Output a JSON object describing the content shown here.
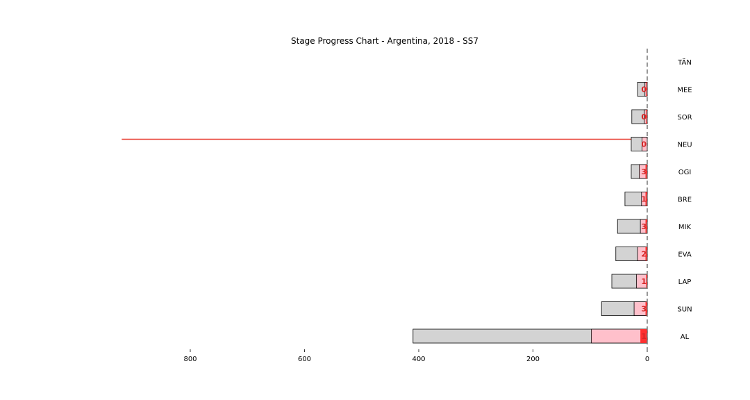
{
  "chart_data": {
    "type": "bar",
    "orientation": "horizontal",
    "title": "Stage Progress Chart - Argentina, 2018 - SS7",
    "xlabel": "",
    "ylabel": "",
    "xlim": [
      0,
      920
    ],
    "x_reversed": true,
    "x_ticks": [
      800,
      600,
      400,
      200,
      0
    ],
    "grid": false,
    "legend": "none",
    "categories": [
      "TÄN",
      "MEE",
      "SOR",
      "NEU",
      "OGI",
      "BRE",
      "MIK",
      "EVA",
      "LAP",
      "SUN",
      "AL"
    ],
    "series": [
      {
        "values": [
          0,
          17,
          27,
          28,
          28,
          39,
          52,
          55,
          62,
          80,
          410
        ]
      },
      {
        "values": [
          0,
          4,
          5,
          9,
          14,
          10,
          12,
          17,
          19,
          23,
          98
        ]
      },
      {
        "values": [
          0,
          2,
          2,
          0,
          3,
          3,
          3,
          3,
          2,
          3,
          12
        ]
      }
    ],
    "data_labels": [
      "",
      "0",
      "0",
      "0",
      "3",
      "1",
      "3",
      "2",
      "1",
      "3",
      "1"
    ],
    "reference_line": {
      "category": "NEU",
      "value": 920,
      "color": "#e8392c"
    },
    "zero_line": {
      "value": 0,
      "style": "dashed"
    },
    "colors": {
      "total_bar": "#d3d3d3",
      "stage_bar": "#ffc0cb",
      "stage_gain": "#ff3030",
      "reference_line": "#e8392c",
      "zero_line": "#777777"
    }
  }
}
